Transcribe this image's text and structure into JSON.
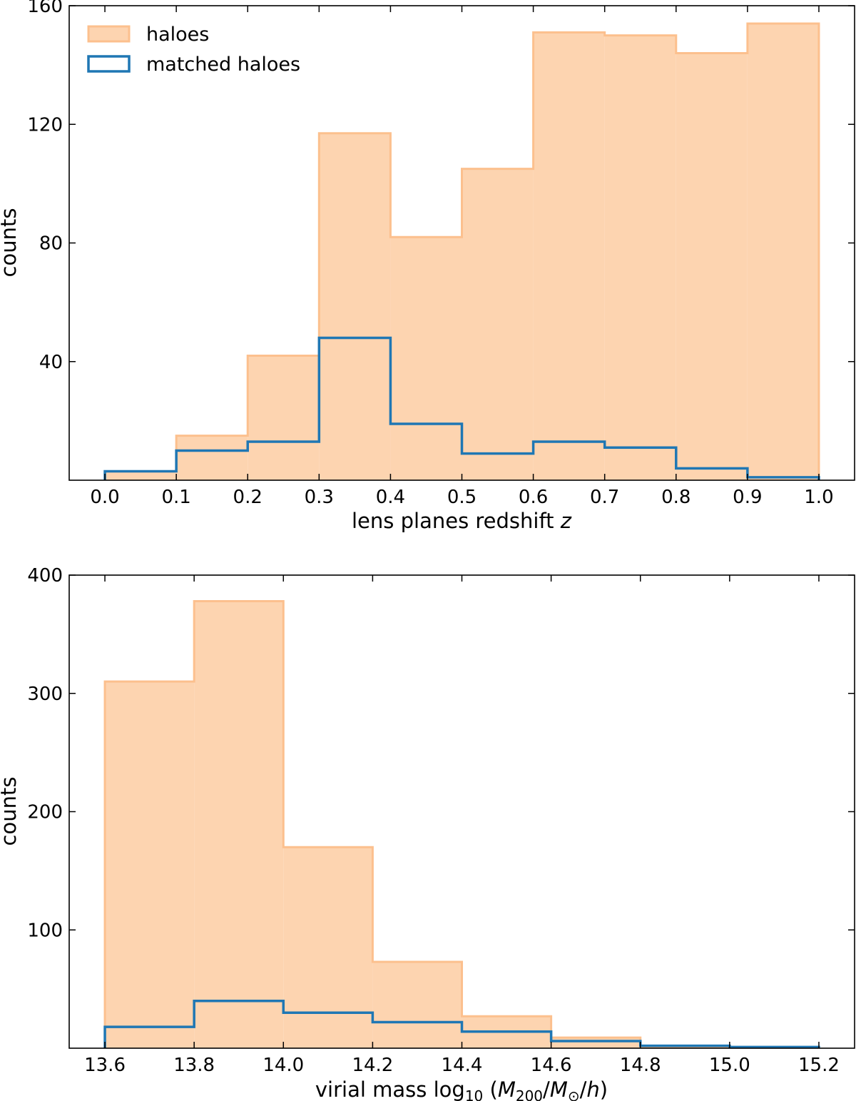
{
  "colors": {
    "haloes_fill": "#fdd4b0",
    "haloes_edge": "#fcc08e",
    "matched_edge": "#1f77b4"
  },
  "chart_data": [
    {
      "type": "histogram",
      "xlabel": "lens planes redshift z",
      "xlabel_parts": {
        "text": "lens planes redshift ",
        "var": "z"
      },
      "ylabel": "counts",
      "bin_edges": [
        0.0,
        0.1,
        0.2,
        0.3,
        0.4,
        0.5,
        0.6,
        0.7,
        0.8,
        0.9,
        1.0
      ],
      "xlim": [
        -0.05,
        1.05
      ],
      "ylim": [
        0,
        160
      ],
      "xticks": [
        0.0,
        0.1,
        0.2,
        0.3,
        0.4,
        0.5,
        0.6,
        0.7,
        0.8,
        0.9,
        1.0
      ],
      "xtick_labels": [
        "0.0",
        "0.1",
        "0.2",
        "0.3",
        "0.4",
        "0.5",
        "0.6",
        "0.7",
        "0.8",
        "0.9",
        "1.0"
      ],
      "yticks": [
        40,
        80,
        120,
        160
      ],
      "ytick_labels": [
        "40",
        "80",
        "120",
        "160"
      ],
      "legend": {
        "placement": "top-left",
        "entries": [
          "haloes",
          "matched haloes"
        ]
      },
      "series": [
        {
          "name": "haloes",
          "style": "filled",
          "values": [
            3,
            15,
            42,
            117,
            82,
            105,
            151,
            150,
            144,
            154
          ]
        },
        {
          "name": "matched haloes",
          "style": "step",
          "values": [
            3,
            10,
            13,
            48,
            19,
            9,
            13,
            11,
            4,
            1
          ]
        }
      ]
    },
    {
      "type": "histogram",
      "xlabel": "virial mass log10 (M200/M⊙/h)",
      "xlabel_parts": {
        "prefix": "virial mass log",
        "sub": "10",
        "paren_open": " (",
        "var": "M",
        "var_sub": "200",
        "sep": "/",
        "var2": "M",
        "var2_sub": "⊙",
        "sep2": "/",
        "var3": "h",
        "paren_close": ")"
      },
      "ylabel": "counts",
      "bin_edges": [
        13.6,
        13.8,
        14.0,
        14.2,
        14.4,
        14.6,
        14.8,
        15.0,
        15.2
      ],
      "xlim": [
        13.52,
        15.28
      ],
      "ylim": [
        0,
        400
      ],
      "xticks": [
        13.6,
        13.8,
        14.0,
        14.2,
        14.4,
        14.6,
        14.8,
        15.0,
        15.2
      ],
      "xtick_labels": [
        "13.6",
        "13.8",
        "14.0",
        "14.2",
        "14.4",
        "14.6",
        "14.8",
        "15.0",
        "15.2"
      ],
      "yticks": [
        100,
        200,
        300,
        400
      ],
      "ytick_labels": [
        "100",
        "200",
        "300",
        "400"
      ],
      "series": [
        {
          "name": "haloes",
          "style": "filled",
          "values": [
            310,
            378,
            170,
            73,
            27,
            9,
            1,
            1
          ]
        },
        {
          "name": "matched haloes",
          "style": "step",
          "values": [
            18,
            40,
            30,
            22,
            14,
            6,
            2,
            1
          ]
        }
      ]
    }
  ]
}
